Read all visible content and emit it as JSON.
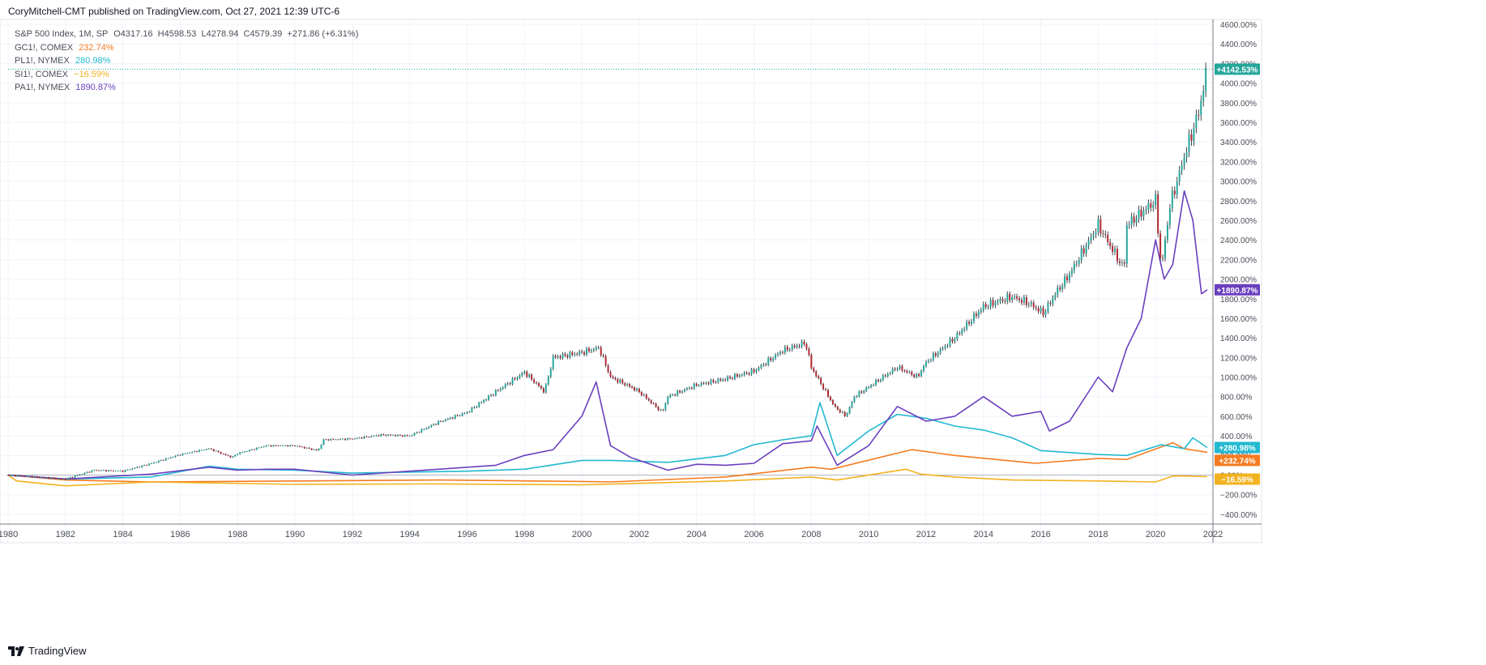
{
  "header": {
    "publisher": "CoryMitchell-CMT published on TradingView.com, Oct 27, 2021 12:39 UTC-6"
  },
  "legend": {
    "main": {
      "name": "S&P 500 Index, 1M, SP",
      "ohlc": "O4317.16  H4598.53  L4278.94  C4579.39  +271.86 (+6.31%)"
    },
    "comparisons": [
      {
        "name": "GC1!, COMEX",
        "value": "232.74%",
        "color": "#f57b20"
      },
      {
        "name": "PL1!, NYMEX",
        "value": "280.98%",
        "color": "#22b9d0"
      },
      {
        "name": "SI1!, COMEX",
        "value": "−16.59%",
        "color": "#f2b220"
      },
      {
        "name": "PA1!, NYMEX",
        "value": "1890.87%",
        "color": "#6a3fbf"
      }
    ]
  },
  "footer": {
    "logo_text": "TradingView"
  },
  "chart_data": {
    "type": "line",
    "title": "S&P 500 Index, 1M, SP",
    "y_unit": "%",
    "y_scale": "percent change",
    "ylim": [
      -500,
      4650
    ],
    "xlim": [
      1980,
      2022
    ],
    "y_ticks": [
      "4600.00%",
      "4400.00%",
      "4200.00%",
      "4000.00%",
      "3800.00%",
      "3600.00%",
      "3400.00%",
      "3200.00%",
      "3000.00%",
      "2800.00%",
      "2600.00%",
      "2400.00%",
      "2200.00%",
      "2000.00%",
      "1800.00%",
      "1600.00%",
      "1400.00%",
      "1200.00%",
      "1000.00%",
      "800.00%",
      "600.00%",
      "400.00%",
      "200.00%",
      "0.00%",
      "−200.00%",
      "−400.00%"
    ],
    "x_ticks": [
      "1980",
      "1982",
      "1984",
      "1986",
      "1988",
      "1990",
      "1992",
      "1994",
      "1996",
      "1998",
      "2000",
      "2002",
      "2004",
      "2006",
      "2008",
      "2010",
      "2012",
      "2014",
      "2016",
      "2018",
      "2020",
      "2022"
    ],
    "grid": true,
    "up_color": "#26a69a",
    "down_color": "#b22833",
    "series": [
      {
        "name": "S&P 500 Index, 1M, SP",
        "kind": "candles",
        "x": [
          1980,
          1981,
          1982,
          1983,
          1984,
          1985,
          1986,
          1987,
          1987.8,
          1988,
          1989,
          1990,
          1990.8,
          1991,
          1992,
          1993,
          1994,
          1995,
          1996,
          1997,
          1998,
          1998.7,
          1999,
          2000,
          2000.6,
          2001,
          2001.7,
          2002,
          2002.8,
          2003,
          2004,
          2005,
          2006,
          2007,
          2007.8,
          2008,
          2008.8,
          2009.2,
          2009.5,
          2010,
          2011,
          2011.7,
          2012,
          2013,
          2014,
          2015,
          2015.6,
          2016.1,
          2016.5,
          2017,
          2018,
          2018.9,
          2019,
          2019.6,
          2020,
          2020.2,
          2020.5,
          2021,
          2021.5,
          2021.8
        ],
        "values": [
          0,
          -20,
          -40,
          50,
          40,
          120,
          210,
          270,
          180,
          220,
          300,
          300,
          250,
          360,
          370,
          410,
          400,
          540,
          640,
          850,
          1050,
          850,
          1200,
          1250,
          1300,
          1000,
          900,
          850,
          640,
          800,
          920,
          980,
          1060,
          1270,
          1350,
          1100,
          700,
          600,
          800,
          900,
          1100,
          1000,
          1150,
          1400,
          1720,
          1820,
          1750,
          1650,
          1850,
          2050,
          2550,
          2100,
          2550,
          2700,
          2800,
          2100,
          2750,
          3250,
          3700,
          4142.53
        ]
      },
      {
        "name": "GC1!, COMEX",
        "color": "#f57b20",
        "x": [
          1980,
          1982,
          1985,
          1990,
          1995,
          2000,
          2001,
          2005,
          2008,
          2008.7,
          2011.5,
          2013,
          2015.8,
          2018,
          2019,
          2020.6,
          2021,
          2021.8
        ],
        "values": [
          0,
          -50,
          -70,
          -60,
          -50,
          -65,
          -70,
          -20,
          80,
          60,
          260,
          200,
          120,
          170,
          160,
          330,
          270,
          232.74
        ]
      },
      {
        "name": "PL1!, NYMEX",
        "color": "#22b9d0",
        "x": [
          1980,
          1982,
          1985,
          1987,
          1988,
          1990,
          1992,
          1996,
          1998,
          2000,
          2001,
          2003,
          2005,
          2006,
          2007,
          2008,
          2008.3,
          2008.9,
          2010,
          2011,
          2012,
          2013,
          2014,
          2015,
          2016,
          2018,
          2019,
          2020.2,
          2021,
          2021.3,
          2021.8
        ],
        "values": [
          0,
          -40,
          -20,
          90,
          60,
          50,
          20,
          40,
          60,
          150,
          150,
          130,
          200,
          310,
          360,
          400,
          740,
          200,
          450,
          620,
          580,
          500,
          460,
          380,
          250,
          210,
          200,
          310,
          270,
          380,
          280.98
        ]
      },
      {
        "name": "SI1!, COMEX",
        "color": "#f2b220",
        "x": [
          1980,
          1980.3,
          1982,
          1985,
          1990,
          1995,
          2000,
          2005,
          2008,
          2008.9,
          2011.3,
          2011.8,
          2013,
          2015,
          2018,
          2020,
          2020.6,
          2021,
          2021.8
        ],
        "values": [
          0,
          -60,
          -110,
          -70,
          -95,
          -90,
          -100,
          -60,
          -20,
          -50,
          60,
          10,
          -20,
          -50,
          -60,
          -70,
          -10,
          -10,
          -16.59
        ]
      },
      {
        "name": "PA1!, NYMEX",
        "color": "#6a3fbf",
        "x": [
          1980,
          1982,
          1985,
          1987,
          1988,
          1989,
          1990,
          1992,
          1995,
          1997,
          1998,
          1999,
          2000,
          2000.5,
          2001,
          2001.7,
          2002,
          2003,
          2004,
          2005,
          2006,
          2007,
          2008,
          2008.2,
          2008.9,
          2010,
          2011,
          2012,
          2013,
          2014,
          2015,
          2016,
          2016.3,
          2017,
          2018,
          2018.5,
          2019,
          2019.5,
          2020,
          2020.3,
          2020.6,
          2021,
          2021.3,
          2021.6,
          2021.8
        ],
        "values": [
          0,
          -40,
          10,
          80,
          50,
          60,
          60,
          0,
          60,
          100,
          200,
          260,
          600,
          950,
          300,
          180,
          150,
          50,
          110,
          100,
          120,
          320,
          350,
          500,
          100,
          300,
          700,
          550,
          600,
          800,
          600,
          650,
          450,
          550,
          1000,
          850,
          1300,
          1600,
          2400,
          2000,
          2150,
          2900,
          2600,
          1850,
          1890.87
        ]
      }
    ],
    "last_value_labels": [
      {
        "text": "+4142.53%",
        "color": "#26a69a",
        "value": 4142.53
      },
      {
        "text": "+1890.87%",
        "color": "#6a3fbf",
        "value": 1890.87
      },
      {
        "text": "+280.98%",
        "color": "#22b9d0",
        "value": 280.98
      },
      {
        "text": "+232.74%",
        "color": "#f57b20",
        "value": 232.74
      },
      {
        "text": "−16.59%",
        "color": "#f2b220",
        "value": -16.59
      }
    ]
  }
}
